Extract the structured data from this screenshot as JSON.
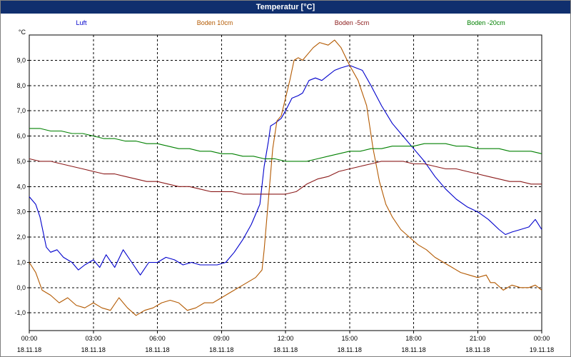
{
  "window": {
    "title": "Temperatur [°C]"
  },
  "chart_data": {
    "type": "line",
    "title": "Temperatur [°C]",
    "ylabel": "°C",
    "xlim": [
      0,
      24
    ],
    "ylim": [
      -1.7,
      10.0
    ],
    "grid": true,
    "legend_position": "top",
    "x_ticks": [
      {
        "h": 0,
        "time": "00:00",
        "date": "18.11.18"
      },
      {
        "h": 3,
        "time": "03:00",
        "date": "18.11.18"
      },
      {
        "h": 6,
        "time": "06:00",
        "date": "18.11.18"
      },
      {
        "h": 9,
        "time": "09:00",
        "date": "18.11.18"
      },
      {
        "h": 12,
        "time": "12:00",
        "date": "18.11.18"
      },
      {
        "h": 15,
        "time": "15:00",
        "date": "18.11.18"
      },
      {
        "h": 18,
        "time": "18:00",
        "date": "18.11.18"
      },
      {
        "h": 21,
        "time": "21:00",
        "date": "18.11.18"
      },
      {
        "h": 24,
        "time": "00:00",
        "date": "19.11.18"
      }
    ],
    "y_ticks": [
      {
        "v": -1,
        "label": "-1,0"
      },
      {
        "v": 0,
        "label": "0,0"
      },
      {
        "v": 1,
        "label": "1,0"
      },
      {
        "v": 2,
        "label": "2,0"
      },
      {
        "v": 3,
        "label": "3,0"
      },
      {
        "v": 4,
        "label": "4,0"
      },
      {
        "v": 5,
        "label": "5,0"
      },
      {
        "v": 6,
        "label": "6,0"
      },
      {
        "v": 7,
        "label": "7,0"
      },
      {
        "v": 8,
        "label": "8,0"
      },
      {
        "v": 9,
        "label": "9,0"
      }
    ],
    "series": [
      {
        "name": "Luft",
        "color": "#0000cc",
        "points": [
          [
            0,
            3.6
          ],
          [
            0.3,
            3.3
          ],
          [
            0.5,
            2.8
          ],
          [
            0.8,
            1.6
          ],
          [
            1.0,
            1.4
          ],
          [
            1.3,
            1.5
          ],
          [
            1.6,
            1.2
          ],
          [
            2.0,
            1.0
          ],
          [
            2.3,
            0.7
          ],
          [
            2.6,
            0.9
          ],
          [
            3.0,
            1.1
          ],
          [
            3.3,
            0.8
          ],
          [
            3.6,
            1.3
          ],
          [
            4.0,
            0.8
          ],
          [
            4.4,
            1.5
          ],
          [
            4.8,
            1.0
          ],
          [
            5.2,
            0.5
          ],
          [
            5.6,
            1.0
          ],
          [
            6.0,
            1.0
          ],
          [
            6.4,
            1.2
          ],
          [
            6.8,
            1.1
          ],
          [
            7.2,
            0.9
          ],
          [
            7.6,
            1.0
          ],
          [
            8.0,
            0.9
          ],
          [
            8.4,
            0.9
          ],
          [
            8.8,
            0.9
          ],
          [
            9.2,
            1.0
          ],
          [
            9.6,
            1.4
          ],
          [
            10.0,
            1.9
          ],
          [
            10.4,
            2.5
          ],
          [
            10.8,
            3.3
          ],
          [
            11.0,
            4.8
          ],
          [
            11.2,
            5.8
          ],
          [
            11.3,
            6.4
          ],
          [
            11.5,
            6.5
          ],
          [
            11.8,
            6.7
          ],
          [
            12.0,
            7.0
          ],
          [
            12.3,
            7.5
          ],
          [
            12.6,
            7.6
          ],
          [
            12.8,
            7.7
          ],
          [
            13.1,
            8.2
          ],
          [
            13.4,
            8.3
          ],
          [
            13.7,
            8.2
          ],
          [
            14.0,
            8.4
          ],
          [
            14.3,
            8.6
          ],
          [
            14.6,
            8.7
          ],
          [
            15.0,
            8.8
          ],
          [
            15.3,
            8.7
          ],
          [
            15.6,
            8.6
          ],
          [
            16.0,
            8.0
          ],
          [
            16.5,
            7.2
          ],
          [
            17.0,
            6.5
          ],
          [
            17.5,
            6.0
          ],
          [
            18.0,
            5.5
          ],
          [
            18.5,
            5.0
          ],
          [
            19.0,
            4.4
          ],
          [
            19.5,
            3.9
          ],
          [
            20.0,
            3.5
          ],
          [
            20.5,
            3.2
          ],
          [
            21.0,
            3.0
          ],
          [
            21.5,
            2.7
          ],
          [
            22.0,
            2.3
          ],
          [
            22.3,
            2.1
          ],
          [
            22.6,
            2.2
          ],
          [
            23.0,
            2.3
          ],
          [
            23.4,
            2.4
          ],
          [
            23.7,
            2.7
          ],
          [
            24.0,
            2.3
          ]
        ]
      },
      {
        "name": "Boden 10cm",
        "color": "#b35900",
        "points": [
          [
            0,
            1.0
          ],
          [
            0.3,
            0.6
          ],
          [
            0.6,
            -0.1
          ],
          [
            1.0,
            -0.3
          ],
          [
            1.4,
            -0.6
          ],
          [
            1.8,
            -0.4
          ],
          [
            2.2,
            -0.7
          ],
          [
            2.6,
            -0.8
          ],
          [
            3.0,
            -0.6
          ],
          [
            3.4,
            -0.8
          ],
          [
            3.8,
            -0.9
          ],
          [
            4.2,
            -0.4
          ],
          [
            4.6,
            -0.8
          ],
          [
            5.0,
            -1.1
          ],
          [
            5.4,
            -0.9
          ],
          [
            5.8,
            -0.8
          ],
          [
            6.2,
            -0.6
          ],
          [
            6.6,
            -0.5
          ],
          [
            7.0,
            -0.6
          ],
          [
            7.4,
            -0.9
          ],
          [
            7.8,
            -0.8
          ],
          [
            8.2,
            -0.6
          ],
          [
            8.6,
            -0.6
          ],
          [
            9.0,
            -0.4
          ],
          [
            9.4,
            -0.2
          ],
          [
            9.8,
            0.0
          ],
          [
            10.2,
            0.2
          ],
          [
            10.6,
            0.4
          ],
          [
            10.9,
            0.7
          ],
          [
            11.0,
            1.5
          ],
          [
            11.2,
            3.5
          ],
          [
            11.4,
            5.5
          ],
          [
            11.6,
            6.6
          ],
          [
            11.8,
            6.8
          ],
          [
            12.0,
            7.5
          ],
          [
            12.2,
            8.2
          ],
          [
            12.4,
            9.0
          ],
          [
            12.6,
            9.1
          ],
          [
            12.8,
            9.0
          ],
          [
            13.0,
            9.2
          ],
          [
            13.3,
            9.5
          ],
          [
            13.6,
            9.7
          ],
          [
            14.0,
            9.6
          ],
          [
            14.3,
            9.8
          ],
          [
            14.6,
            9.5
          ],
          [
            15.0,
            8.8
          ],
          [
            15.4,
            8.2
          ],
          [
            15.8,
            7.2
          ],
          [
            16.1,
            5.5
          ],
          [
            16.4,
            4.2
          ],
          [
            16.7,
            3.3
          ],
          [
            17.0,
            2.8
          ],
          [
            17.4,
            2.3
          ],
          [
            17.8,
            2.0
          ],
          [
            18.2,
            1.7
          ],
          [
            18.6,
            1.5
          ],
          [
            19.0,
            1.2
          ],
          [
            19.4,
            1.0
          ],
          [
            19.8,
            0.8
          ],
          [
            20.2,
            0.6
          ],
          [
            20.6,
            0.5
          ],
          [
            21.0,
            0.4
          ],
          [
            21.4,
            0.5
          ],
          [
            21.6,
            0.2
          ],
          [
            21.8,
            0.2
          ],
          [
            22.2,
            -0.1
          ],
          [
            22.6,
            0.1
          ],
          [
            23.0,
            0.0
          ],
          [
            23.4,
            0.0
          ],
          [
            23.7,
            0.1
          ],
          [
            24.0,
            -0.1
          ]
        ]
      },
      {
        "name": "Boden -5cm",
        "color": "#8b1a1a",
        "points": [
          [
            0,
            5.1
          ],
          [
            0.5,
            5.0
          ],
          [
            1.0,
            5.0
          ],
          [
            1.5,
            4.9
          ],
          [
            2.0,
            4.8
          ],
          [
            2.5,
            4.7
          ],
          [
            3.0,
            4.6
          ],
          [
            3.5,
            4.5
          ],
          [
            4.0,
            4.5
          ],
          [
            4.5,
            4.4
          ],
          [
            5.0,
            4.3
          ],
          [
            5.5,
            4.2
          ],
          [
            6.0,
            4.2
          ],
          [
            6.5,
            4.1
          ],
          [
            7.0,
            4.0
          ],
          [
            7.5,
            4.0
          ],
          [
            8.0,
            3.9
          ],
          [
            8.5,
            3.8
          ],
          [
            9.0,
            3.8
          ],
          [
            9.5,
            3.8
          ],
          [
            10.0,
            3.7
          ],
          [
            10.5,
            3.7
          ],
          [
            11.0,
            3.7
          ],
          [
            11.5,
            3.7
          ],
          [
            12.0,
            3.7
          ],
          [
            12.5,
            3.8
          ],
          [
            13.0,
            4.1
          ],
          [
            13.5,
            4.3
          ],
          [
            14.0,
            4.4
          ],
          [
            14.5,
            4.6
          ],
          [
            15.0,
            4.7
          ],
          [
            15.5,
            4.8
          ],
          [
            16.0,
            4.9
          ],
          [
            16.5,
            5.0
          ],
          [
            17.0,
            5.0
          ],
          [
            17.5,
            5.0
          ],
          [
            18.0,
            4.9
          ],
          [
            18.5,
            4.9
          ],
          [
            19.0,
            4.8
          ],
          [
            19.5,
            4.7
          ],
          [
            20.0,
            4.7
          ],
          [
            20.5,
            4.6
          ],
          [
            21.0,
            4.5
          ],
          [
            21.5,
            4.4
          ],
          [
            22.0,
            4.3
          ],
          [
            22.5,
            4.2
          ],
          [
            23.0,
            4.2
          ],
          [
            23.5,
            4.1
          ],
          [
            24.0,
            4.1
          ]
        ]
      },
      {
        "name": "Boden -20cm",
        "color": "#008000",
        "points": [
          [
            0,
            6.3
          ],
          [
            0.5,
            6.3
          ],
          [
            1.0,
            6.2
          ],
          [
            1.5,
            6.2
          ],
          [
            2.0,
            6.1
          ],
          [
            2.5,
            6.1
          ],
          [
            3.0,
            6.0
          ],
          [
            3.5,
            5.9
          ],
          [
            4.0,
            5.9
          ],
          [
            4.5,
            5.8
          ],
          [
            5.0,
            5.8
          ],
          [
            5.5,
            5.7
          ],
          [
            6.0,
            5.7
          ],
          [
            6.5,
            5.6
          ],
          [
            7.0,
            5.5
          ],
          [
            7.5,
            5.5
          ],
          [
            8.0,
            5.4
          ],
          [
            8.5,
            5.4
          ],
          [
            9.0,
            5.3
          ],
          [
            9.5,
            5.3
          ],
          [
            10.0,
            5.2
          ],
          [
            10.5,
            5.2
          ],
          [
            11.0,
            5.1
          ],
          [
            11.5,
            5.1
          ],
          [
            12.0,
            5.0
          ],
          [
            12.5,
            5.0
          ],
          [
            13.0,
            5.0
          ],
          [
            13.5,
            5.1
          ],
          [
            14.0,
            5.2
          ],
          [
            14.5,
            5.3
          ],
          [
            15.0,
            5.4
          ],
          [
            15.5,
            5.4
          ],
          [
            16.0,
            5.5
          ],
          [
            16.5,
            5.5
          ],
          [
            17.0,
            5.6
          ],
          [
            17.5,
            5.6
          ],
          [
            18.0,
            5.6
          ],
          [
            18.5,
            5.7
          ],
          [
            19.0,
            5.7
          ],
          [
            19.5,
            5.7
          ],
          [
            20.0,
            5.6
          ],
          [
            20.5,
            5.6
          ],
          [
            21.0,
            5.5
          ],
          [
            21.5,
            5.5
          ],
          [
            22.0,
            5.5
          ],
          [
            22.5,
            5.4
          ],
          [
            23.0,
            5.4
          ],
          [
            23.5,
            5.4
          ],
          [
            24.0,
            5.3
          ]
        ]
      }
    ]
  }
}
